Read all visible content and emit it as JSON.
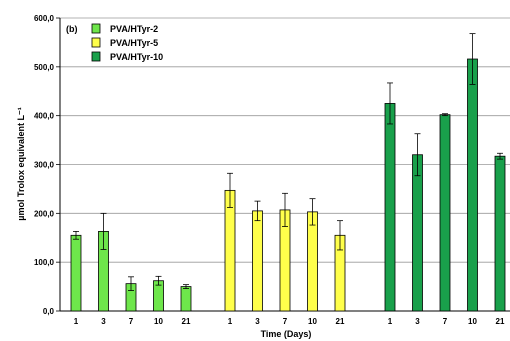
{
  "chart_data": {
    "type": "bar",
    "panel_label": "(b)",
    "ylabel": "µmol Trolox equivalent L⁻¹",
    "xlabel": "Time (Days)",
    "ylim": [
      0,
      600
    ],
    "yticks": [
      "0,0",
      "100,0",
      "200,0",
      "300,0",
      "400,0",
      "500,0",
      "600,0"
    ],
    "grid": "horizontal",
    "legend_position": "top-left",
    "series": [
      {
        "name": "PVA/HTyr-2",
        "color": "#6ee64b",
        "categories": [
          "1",
          "3",
          "7",
          "10",
          "21"
        ],
        "values": [
          155,
          163,
          56,
          62,
          50
        ],
        "errors": [
          8,
          37,
          14,
          9,
          4
        ]
      },
      {
        "name": "PVA/HTyr-5",
        "color": "#ffff4b",
        "categories": [
          "1",
          "3",
          "7",
          "10",
          "21"
        ],
        "values": [
          247,
          205,
          207,
          203,
          155
        ],
        "errors": [
          35,
          20,
          34,
          27,
          30
        ]
      },
      {
        "name": "PVA/HTyr-10",
        "color": "#19a04b",
        "categories": [
          "1",
          "3",
          "7",
          "10",
          "21"
        ],
        "values": [
          425,
          320,
          402,
          516,
          317
        ],
        "errors": [
          42,
          43,
          2,
          52,
          6
        ]
      }
    ]
  }
}
